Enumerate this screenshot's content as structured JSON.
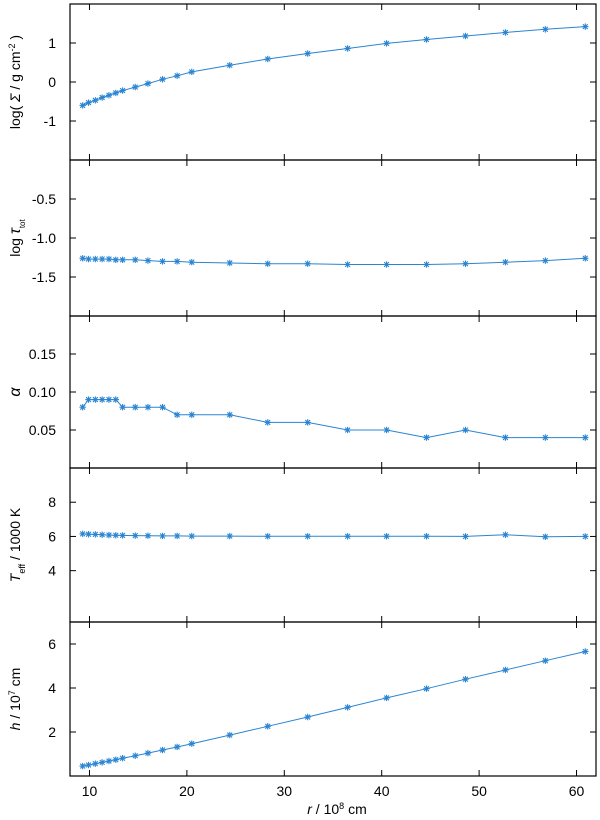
{
  "chart_data": {
    "type": "line",
    "shared_x": {
      "label_parts": [
        "r",
        " / 10",
        "8",
        " cm"
      ],
      "lim": [
        8,
        62
      ],
      "ticks": [
        10,
        20,
        30,
        40,
        50,
        60
      ],
      "values": [
        9.3,
        9.9,
        10.6,
        11.3,
        12.0,
        12.7,
        13.4,
        14.7,
        16.0,
        17.5,
        19.0,
        20.5,
        24.4,
        28.3,
        32.4,
        36.5,
        40.5,
        44.6,
        48.6,
        52.7,
        56.8,
        60.9
      ]
    },
    "color": "#2a84d2",
    "panels": [
      {
        "label_parts": [
          "log( ",
          "Σ",
          " / g cm",
          "-2",
          " )"
        ],
        "ylim": [
          -2.0,
          2.0
        ],
        "yticks": [
          1,
          0,
          -1
        ],
        "ytick_labels": [
          "1",
          "0",
          "-1"
        ],
        "values": [
          -0.6,
          -0.53,
          -0.47,
          -0.4,
          -0.34,
          -0.28,
          -0.22,
          -0.13,
          -0.04,
          0.07,
          0.16,
          0.26,
          0.43,
          0.59,
          0.73,
          0.86,
          0.99,
          1.09,
          1.18,
          1.27,
          1.35,
          1.42
        ]
      },
      {
        "label_parts": [
          "log ",
          "τ",
          "tot"
        ],
        "ylim": [
          -2.0,
          0.0
        ],
        "yticks": [
          -0.5,
          -1.0,
          -1.5
        ],
        "ytick_labels": [
          "-0.5",
          "-1.0",
          "-1.5"
        ],
        "values": [
          -1.26,
          -1.27,
          -1.27,
          -1.27,
          -1.27,
          -1.28,
          -1.28,
          -1.28,
          -1.29,
          -1.3,
          -1.3,
          -1.31,
          -1.32,
          -1.33,
          -1.33,
          -1.34,
          -1.34,
          -1.34,
          -1.33,
          -1.31,
          -1.29,
          -1.26
        ]
      },
      {
        "label_parts": [
          "α"
        ],
        "ylim": [
          0.0,
          0.2
        ],
        "yticks": [
          0.15,
          0.1,
          0.05
        ],
        "ytick_labels": [
          "0.15",
          "0.10",
          "0.05"
        ],
        "values": [
          0.08,
          0.09,
          0.09,
          0.09,
          0.09,
          0.09,
          0.08,
          0.08,
          0.08,
          0.08,
          0.07,
          0.07,
          0.07,
          0.06,
          0.06,
          0.05,
          0.05,
          0.04,
          0.05,
          0.04,
          0.04,
          0.04
        ]
      },
      {
        "label_parts": [
          "T",
          "eff",
          " / 1000 K"
        ],
        "ylim": [
          1.0,
          10.0
        ],
        "yticks": [
          8,
          6,
          4
        ],
        "ytick_labels": [
          "8",
          "6",
          "4"
        ],
        "values": [
          6.15,
          6.13,
          6.12,
          6.1,
          6.08,
          6.07,
          6.06,
          6.05,
          6.04,
          6.03,
          6.03,
          6.02,
          6.02,
          6.01,
          6.01,
          6.01,
          6.01,
          6.01,
          6.0,
          6.1,
          5.98,
          6.0
        ]
      },
      {
        "label_parts": [
          "h",
          " / 10",
          "7",
          " cm"
        ],
        "ylim": [
          0.0,
          7.0
        ],
        "yticks": [
          6,
          4,
          2
        ],
        "ytick_labels": [
          "6",
          "4",
          "2"
        ],
        "values": [
          0.45,
          0.5,
          0.56,
          0.62,
          0.68,
          0.74,
          0.81,
          0.92,
          1.04,
          1.18,
          1.32,
          1.47,
          1.86,
          2.26,
          2.68,
          3.12,
          3.55,
          3.97,
          4.4,
          4.82,
          5.24,
          5.66
        ]
      }
    ]
  }
}
